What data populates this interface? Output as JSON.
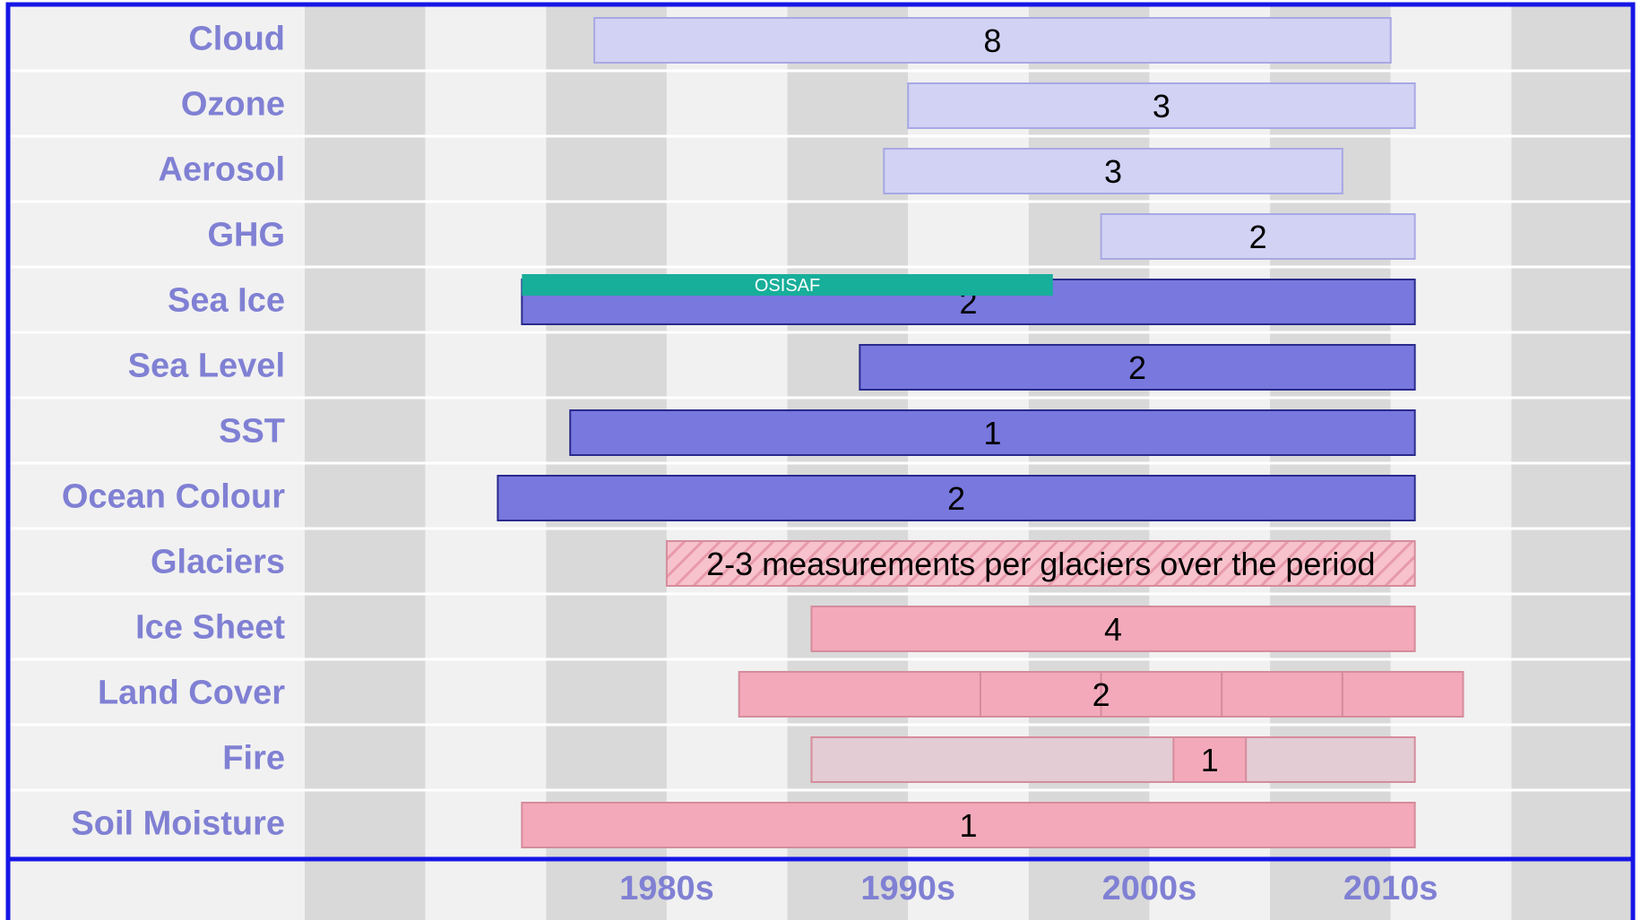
{
  "chart_data": {
    "type": "bar",
    "subtype": "timeline",
    "x_axis": {
      "range": [
        1965,
        2020
      ],
      "tick_labels": [
        {
          "year": 1980,
          "label": "1980s"
        },
        {
          "year": 1990,
          "label": "1990s"
        },
        {
          "year": 2000,
          "label": "2000s"
        },
        {
          "year": 2010,
          "label": "2010s"
        }
      ]
    },
    "grid": "alternating-bands",
    "categories": [
      "Cloud",
      "Ozone",
      "Aerosol",
      "GHG",
      "Sea Ice",
      "Sea Level",
      "SST",
      "Ocean Colour",
      "Glaciers",
      "Ice Sheet",
      "Land Cover",
      "Fire",
      "Soil Moisture"
    ],
    "bars": [
      {
        "category": "Cloud",
        "start": 1977,
        "end": 2010,
        "label": "8",
        "group": "atmosphere"
      },
      {
        "category": "Ozone",
        "start": 1990,
        "end": 2011,
        "label": "3",
        "group": "atmosphere"
      },
      {
        "category": "Aerosol",
        "start": 1989,
        "end": 2008,
        "label": "3",
        "group": "atmosphere"
      },
      {
        "category": "GHG",
        "start": 1998,
        "end": 2011,
        "label": "2",
        "group": "atmosphere"
      },
      {
        "category": "Sea Ice",
        "start": 1974,
        "end": 2011,
        "label": "2",
        "group": "ocean"
      },
      {
        "category": "Sea Level",
        "start": 1988,
        "end": 2011,
        "label": "2",
        "group": "ocean"
      },
      {
        "category": "SST",
        "start": 1976,
        "end": 2011,
        "label": "1",
        "group": "ocean"
      },
      {
        "category": "Ocean Colour",
        "start": 1973,
        "end": 2011,
        "label": "2",
        "group": "ocean"
      },
      {
        "category": "Glaciers",
        "start": 1980,
        "end": 2011,
        "label": "2-3 measurements per glaciers over the period",
        "group": "land",
        "pattern": "hatched"
      },
      {
        "category": "Ice Sheet",
        "start": 1986,
        "end": 2011,
        "label": "4",
        "group": "land"
      },
      {
        "category": "Land Cover",
        "segments": [
          1983,
          1993,
          1998,
          2003,
          2008,
          2013
        ],
        "label": "2",
        "group": "land"
      },
      {
        "category": "Fire",
        "start": 1986,
        "end": 2011,
        "highlight_start": 2001,
        "highlight_end": 2004,
        "label": "1",
        "group": "land"
      },
      {
        "category": "Soil Moisture",
        "start": 1974,
        "end": 2011,
        "label": "1",
        "group": "land"
      }
    ],
    "overlays": [
      {
        "category": "Sea Ice",
        "start": 1974,
        "end": 1996,
        "label": "OSISAF"
      }
    ],
    "colors": {
      "atmosphere": "#d2d2f4",
      "atmosphere_border": "#a8a8e4",
      "ocean": "#7878de",
      "ocean_border": "#2a2a8c",
      "land": "#f3a9b9",
      "land_border": "#d58c9c",
      "fire_range": "#e3ccd3",
      "overlay": "#17ae9a",
      "frame": "#1616e6",
      "band_light": "#f1f1f1",
      "band_dark": "#d9d9d9",
      "label_column": "#f1f1f1",
      "text": "#8080d4"
    }
  }
}
